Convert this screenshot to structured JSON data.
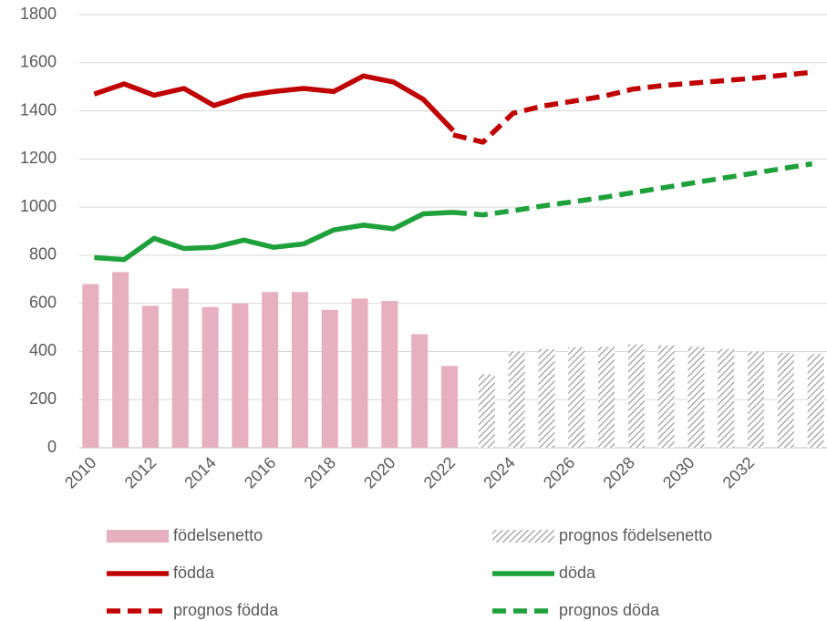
{
  "chart_data": {
    "type": "bar",
    "categories": [
      "2010",
      null,
      "2012",
      null,
      "2014",
      null,
      "2016",
      null,
      "2018",
      null,
      "2020",
      null,
      "2022",
      null,
      "2024",
      null,
      "2026",
      null,
      "2028",
      null,
      "2030",
      null,
      "2032",
      null,
      null
    ],
    "ylim": [
      0,
      1800
    ],
    "yticks": [
      0,
      200,
      400,
      600,
      800,
      1000,
      1200,
      1400,
      1600,
      1800
    ],
    "grid": true,
    "series": [
      {
        "name": "födelsenetto",
        "type": "bar",
        "color": "#e6b0c1",
        "values": [
          680,
          730,
          590,
          662,
          585,
          600,
          647,
          647,
          573,
          620,
          610,
          472,
          340,
          null,
          null,
          null,
          null,
          null,
          null,
          null,
          null,
          null,
          null,
          null,
          null
        ]
      },
      {
        "name": "prognos födelsenetto",
        "type": "bar",
        "color": "#999999",
        "pattern": "hatch",
        "values": [
          null,
          null,
          null,
          null,
          null,
          null,
          null,
          null,
          null,
          null,
          null,
          null,
          null,
          305,
          400,
          410,
          418,
          420,
          430,
          425,
          420,
          410,
          400,
          395,
          390
        ]
      },
      {
        "name": "födda",
        "type": "line",
        "color": "#c00000",
        "values": [
          1470,
          1512,
          1465,
          1493,
          1422,
          1462,
          1480,
          1493,
          1480,
          1545,
          1520,
          1448,
          1318,
          null,
          null,
          null,
          null,
          null,
          null,
          null,
          null,
          null,
          null,
          null,
          null
        ]
      },
      {
        "name": "döda",
        "type": "line",
        "color": "#1ea03a",
        "values": [
          790,
          782,
          870,
          828,
          833,
          863,
          833,
          847,
          905,
          925,
          910,
          972,
          978,
          null,
          null,
          null,
          null,
          null,
          null,
          null,
          null,
          null,
          null,
          null,
          null
        ]
      },
      {
        "name": "prognos födda",
        "type": "line",
        "color": "#c00000",
        "dashed": true,
        "values": [
          null,
          null,
          null,
          null,
          null,
          null,
          null,
          null,
          null,
          null,
          null,
          null,
          1300,
          1270,
          1390,
          1420,
          1440,
          1460,
          1490,
          1505,
          1515,
          1525,
          1535,
          1548,
          1560
        ]
      },
      {
        "name": "prognos döda",
        "type": "line",
        "color": "#1ea03a",
        "dashed": true,
        "values": [
          null,
          null,
          null,
          null,
          null,
          null,
          null,
          null,
          null,
          null,
          null,
          null,
          978,
          968,
          985,
          1005,
          1022,
          1040,
          1060,
          1080,
          1100,
          1120,
          1140,
          1160,
          1180
        ]
      }
    ]
  }
}
